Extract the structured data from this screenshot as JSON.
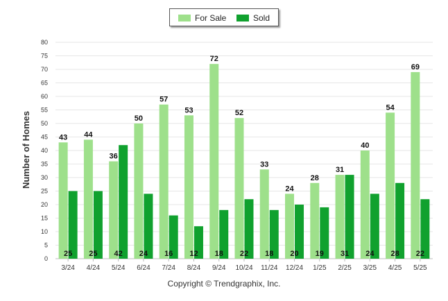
{
  "legend": {
    "for_sale_label": "For Sale",
    "sold_label": "Sold"
  },
  "footer": {
    "copyright": "Copyright © Trendgraphix, Inc."
  },
  "colors": {
    "for_sale": "#9ee08b",
    "sold": "#10a12e",
    "grid": "#e6e6e6",
    "axis": "#bbbbbb"
  },
  "chart_data": {
    "type": "bar",
    "title": "",
    "xlabel": "",
    "ylabel": "Number of Homes",
    "ylim": [
      0,
      80
    ],
    "yticks": [
      0,
      5,
      10,
      15,
      20,
      25,
      30,
      35,
      40,
      45,
      50,
      55,
      60,
      65,
      70,
      75,
      80
    ],
    "grid": true,
    "legend_position": "top-center",
    "categories": [
      "3/24",
      "4/24",
      "5/24",
      "6/24",
      "7/24",
      "8/24",
      "9/24",
      "10/24",
      "11/24",
      "12/24",
      "1/25",
      "2/25",
      "3/25",
      "4/25",
      "5/25"
    ],
    "series": [
      {
        "name": "For Sale",
        "values": [
          43,
          44,
          36,
          50,
          57,
          53,
          72,
          52,
          33,
          24,
          28,
          31,
          40,
          54,
          69
        ]
      },
      {
        "name": "Sold",
        "values": [
          25,
          25,
          42,
          24,
          16,
          12,
          18,
          22,
          18,
          20,
          19,
          31,
          24,
          28,
          22
        ]
      }
    ]
  }
}
